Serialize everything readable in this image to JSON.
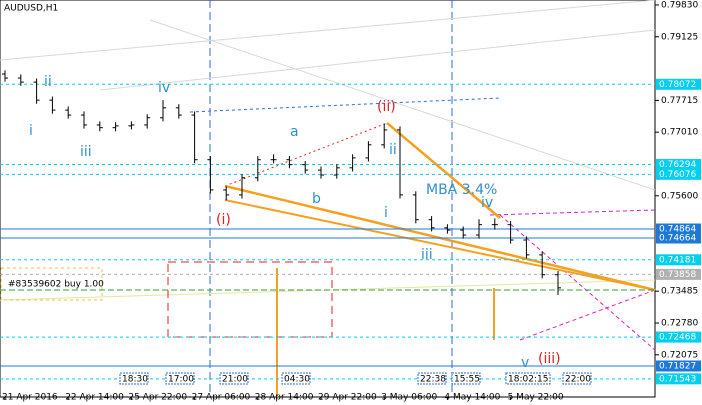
{
  "chart_data": {
    "type": "ohlc",
    "title": "AUDUSD,H1",
    "color": "#000000",
    "categories": [
      "21 Apr 2016",
      null,
      null,
      null,
      "22 Apr 14:00",
      null,
      null,
      null,
      "25 Apr 22:00",
      null,
      null,
      null,
      "27 Apr 06:00",
      null,
      null,
      null,
      "28 Apr 14:00",
      null,
      null,
      null,
      "29 Apr 22:00",
      null,
      null,
      null,
      "3 May 06:00",
      null,
      null,
      null,
      "4 May 14:00",
      null,
      null,
      null,
      "5 May 22:00",
      null,
      null,
      null
    ],
    "open": [
      0.783,
      0.7821,
      0.7812,
      0.7772,
      0.775,
      0.7739,
      0.7717,
      0.7711,
      0.7715,
      0.7717,
      0.7733,
      0.7755,
      0.7739,
      0.764,
      0.7573,
      0.7562,
      0.76,
      0.764,
      0.764,
      0.7629,
      0.7617,
      0.7606,
      0.7622,
      0.7644,
      0.7673,
      0.7706,
      0.7562,
      0.7507,
      0.7489,
      0.7484,
      0.7473,
      0.7496,
      0.7496,
      0.7462,
      0.7429,
      0.7385
    ],
    "high": [
      0.7838,
      0.7829,
      0.782,
      0.778,
      0.7758,
      0.7747,
      0.7725,
      0.7723,
      0.7725,
      0.7741,
      0.7772,
      0.7763,
      0.7747,
      0.7648,
      0.7581,
      0.7608,
      0.7648,
      0.7652,
      0.7648,
      0.7637,
      0.7625,
      0.763,
      0.7652,
      0.7681,
      0.772,
      0.7714,
      0.757,
      0.7515,
      0.7497,
      0.7492,
      0.7508,
      0.751,
      0.7504,
      0.747,
      0.7437,
      0.7393
    ],
    "low": [
      0.7813,
      0.7804,
      0.7764,
      0.7742,
      0.7731,
      0.7709,
      0.7703,
      0.7703,
      0.7707,
      0.7709,
      0.7725,
      0.7731,
      0.7632,
      0.7565,
      0.755,
      0.7554,
      0.7592,
      0.7632,
      0.7621,
      0.7609,
      0.7598,
      0.7598,
      0.7614,
      0.7636,
      0.7665,
      0.7554,
      0.7499,
      0.7481,
      0.7476,
      0.7465,
      0.7465,
      0.7485,
      0.7454,
      0.7421,
      0.7377,
      0.734
    ],
    "close": [
      0.7821,
      0.7812,
      0.7772,
      0.775,
      0.7739,
      0.7717,
      0.7711,
      0.7715,
      0.7717,
      0.7733,
      0.7755,
      0.7739,
      0.764,
      0.7573,
      0.7562,
      0.76,
      0.764,
      0.764,
      0.7629,
      0.7617,
      0.7606,
      0.7622,
      0.7644,
      0.7673,
      0.7706,
      0.7562,
      0.7507,
      0.7489,
      0.7484,
      0.7473,
      0.7496,
      0.7496,
      0.7462,
      0.7429,
      0.7385,
      0.7356
    ],
    "ylim": [
      0.7114,
      0.7994
    ],
    "yticks": [
      {
        "value": 0.7983,
        "label": "0.79830"
      },
      {
        "value": 0.79125,
        "label": "0.79125"
      },
      {
        "value": 0.77715,
        "label": "0.77715"
      },
      {
        "value": 0.7701,
        "label": "0.77010"
      },
      {
        "value": 0.756,
        "label": "0.75600"
      },
      {
        "value": 0.73485,
        "label": "0.73485"
      },
      {
        "value": 0.7278,
        "label": "0.72780"
      },
      {
        "value": 0.72075,
        "label": "0.72075"
      }
    ],
    "levels": [
      {
        "value": 0.78072,
        "label": "0.78072",
        "color": "#00d0f0",
        "dash": true
      },
      {
        "value": 0.76294,
        "label": "0.76294",
        "color": "#00d0f0",
        "dash": true
      },
      {
        "value": 0.76076,
        "label": "0.76076",
        "color": "#00d0f0",
        "dash": true
      },
      {
        "value": 0.74864,
        "label": "0.74864",
        "color": "#1e78d8",
        "dash": false
      },
      {
        "value": 0.74664,
        "label": "0.74664",
        "color": "#1e78d8",
        "dash": false
      },
      {
        "value": 0.74181,
        "label": "0.74181",
        "color": "#00d0f0",
        "dash": true
      },
      {
        "value": 0.73858,
        "label": "0.73858",
        "color": "#b0b0b0",
        "dash": true
      },
      {
        "value": 0.72468,
        "label": "0.72468",
        "color": "#00d0f0",
        "dash": true
      },
      {
        "value": 0.71827,
        "label": "0.71827",
        "color": "#1e78d8",
        "dash": false
      },
      {
        "value": 0.71543,
        "label": "0.71543",
        "color": "#00d0f0",
        "dash": true
      }
    ],
    "annotations": [
      {
        "text": "ii",
        "color": "#2f8fd0"
      },
      {
        "text": "i",
        "color": "#2f8fd0"
      },
      {
        "text": "iii",
        "color": "#2f8fd0"
      },
      {
        "text": "iv",
        "color": "#2f8fd0"
      },
      {
        "text": "a",
        "color": "#2f8fd0"
      },
      {
        "text": "b",
        "color": "#2f8fd0"
      },
      {
        "text": "(i)",
        "color": "#e02020"
      },
      {
        "text": "(ii)",
        "color": "#e02020"
      },
      {
        "text": "ii",
        "color": "#2f8fd0"
      },
      {
        "text": "i",
        "color": "#2f8fd0"
      },
      {
        "text": "iii",
        "color": "#2f8fd0"
      },
      {
        "text": "iv",
        "color": "#2f8fd0"
      },
      {
        "text": "v",
        "color": "#2f8fd0"
      },
      {
        "text": "(iii)",
        "color": "#e02020"
      },
      {
        "text": "MBA 3.4%",
        "color": "#2f8fd0"
      }
    ],
    "order_label": "#83539602 buy 1.00",
    "time_markers": [
      "18:30",
      "17:00",
      "21:00",
      "04:30",
      "22:38",
      "15:55",
      "18:02:15",
      "22:00"
    ]
  }
}
